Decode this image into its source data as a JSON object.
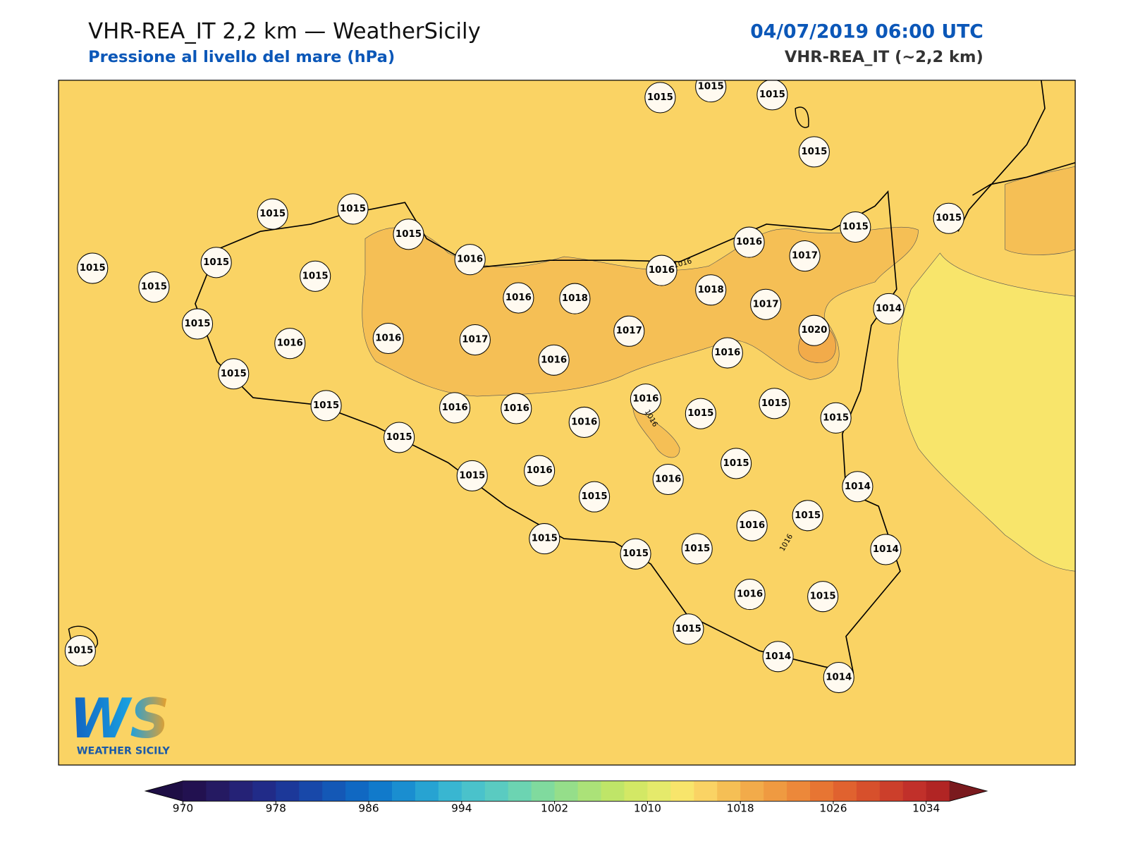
{
  "header": {
    "title": "VHR-REA_IT 2,2 km — WeatherSicily",
    "subtitle": "Pressione al livello del mare (hPa)",
    "date": "04/07/2019 06:00 UTC",
    "model": "VHR-REA_IT (~2,2 km)"
  },
  "stations": [
    1015,
    1015,
    1015,
    1015,
    1015,
    1015,
    1015,
    1015,
    1015,
    1015,
    1015,
    1016,
    1016,
    1018,
    1016,
    1016,
    1017,
    1015,
    1015,
    1018,
    1017,
    1014,
    1020,
    1015,
    1016,
    1016,
    1017,
    1017,
    1016,
    1016,
    1015,
    1015,
    1016,
    1016,
    1016,
    1016,
    1015,
    1015,
    1015,
    1015,
    1015,
    1016,
    1015,
    1016,
    1015,
    1014,
    1016,
    1015,
    1014,
    1015,
    1015,
    1015,
    1016,
    1015,
    1015,
    1014,
    1014,
    1015
  ],
  "contour_labels": [
    1016,
    1016,
    1016
  ],
  "colorbar": {
    "xlim": [
      970,
      1036
    ],
    "xticks": [
      970,
      978,
      986,
      994,
      1002,
      1010,
      1018,
      1026,
      1034
    ],
    "colors": [
      "#221150",
      "#251a62",
      "#252276",
      "#212b88",
      "#1c3899",
      "#1848a9",
      "#1458b6",
      "#1068c2",
      "#117acb",
      "#1a8ed0",
      "#27a3d2",
      "#39b6d1",
      "#4ac2cb",
      "#5acbc1",
      "#6cd4b2",
      "#80da9e",
      "#95de8a",
      "#abe278",
      "#bfe568",
      "#d3e865",
      "#e5ea6b",
      "#f8e56b",
      "#fad364",
      "#f5bf55",
      "#f2ab4a",
      "#ef9a41",
      "#ec883a",
      "#e77533",
      "#e0622f",
      "#d7502c",
      "#cc3f2b",
      "#c1302a",
      "#b12524"
    ],
    "under_color": "#1e0e45",
    "over_color": "#7a1a1e"
  },
  "logo": {
    "text": "WS",
    "caption": "WEATHER SICILY"
  }
}
